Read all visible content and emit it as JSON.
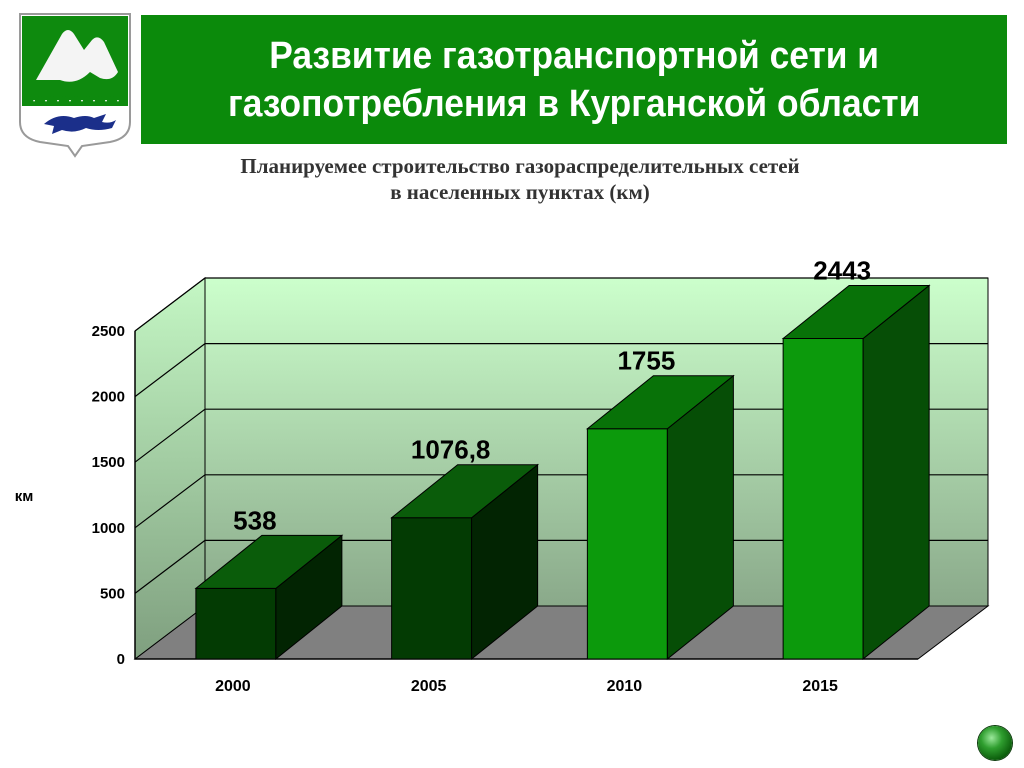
{
  "header": {
    "title": "Развитие газотранспортной сети и\nгазопотребления в Курганской области"
  },
  "subtitle": "Планируемее строительство газораспределительных сетей\nв населенных пунктах (км)",
  "colors": {
    "header_bg": "#0b8a0b",
    "bar_dark": "#033b03",
    "bar_bright": "#0c9a0c",
    "wall_top": "#ccffcc",
    "wall_bottom": "#8aa98a",
    "floor": "#808080"
  },
  "emblem": {
    "icon": "kurgan-region-coat-of-arms-icon"
  },
  "nav": {
    "next_icon": "green-orb-next-icon"
  },
  "chart_data": {
    "type": "bar",
    "categories": [
      "2000",
      "2005",
      "2010",
      "2015"
    ],
    "values": [
      538,
      1076.8,
      1755,
      2443
    ],
    "value_labels": [
      "538",
      "1076,8",
      "1755",
      "2443"
    ],
    "ylabel": "км",
    "ylim": [
      0,
      2500
    ],
    "yticks": [
      0,
      500,
      1000,
      1500,
      2000,
      2500
    ],
    "grid": true,
    "bar_styles": [
      "dark",
      "dark",
      "bright",
      "bright"
    ]
  }
}
